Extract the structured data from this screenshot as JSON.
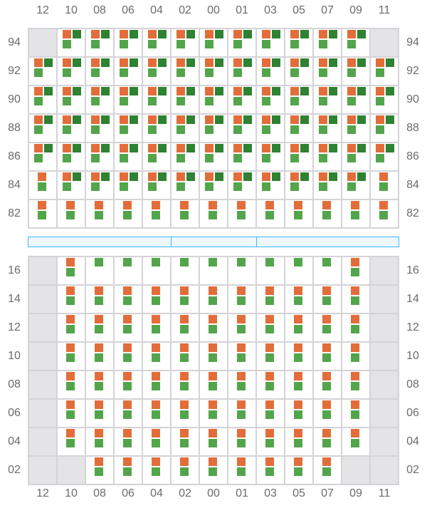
{
  "columns": [
    "12",
    "10",
    "08",
    "06",
    "04",
    "02",
    "00",
    "01",
    "03",
    "05",
    "07",
    "09",
    "11"
  ],
  "legend_codes": {
    "E": "empty",
    "F": "orange+dark-green+green",
    "H": "orange+green",
    "G": "green"
  },
  "colors": {
    "orange": "#e36d3a",
    "dark_green": "#2e8232",
    "green": "#53a54b",
    "empty": "#e4e4e7",
    "divider": "#3dbbf0"
  },
  "top_section": {
    "rows": [
      {
        "label": "94",
        "cells": "EFFFFFFFFFFFE"
      },
      {
        "label": "92",
        "cells": "FFFFFFFFFFFFF"
      },
      {
        "label": "90",
        "cells": "FFFFFFFFFFFFF"
      },
      {
        "label": "88",
        "cells": "FFFFFFFFFFFFF"
      },
      {
        "label": "86",
        "cells": "FFFFFFFFFFFFF"
      },
      {
        "label": "84",
        "cells": "HFFFFFFFFFFFH"
      },
      {
        "label": "82",
        "cells": "HHHHHHHHHHHHH"
      }
    ]
  },
  "bottom_section": {
    "rows": [
      {
        "label": "16",
        "cells": "EHGGGGGGGGGHE"
      },
      {
        "label": "14",
        "cells": "EHHHHHHHHHHHE"
      },
      {
        "label": "12",
        "cells": "EHHHHHHHHHHHE"
      },
      {
        "label": "10",
        "cells": "EHHHHHHHHHHHE"
      },
      {
        "label": "08",
        "cells": "EHHHHHHHHHHHE"
      },
      {
        "label": "06",
        "cells": "EHHHHHHHHHHHE"
      },
      {
        "label": "04",
        "cells": "EHHHHHHHHHHHE"
      },
      {
        "label": "02",
        "cells": "EEHHHHHHHHHEE"
      }
    ]
  }
}
